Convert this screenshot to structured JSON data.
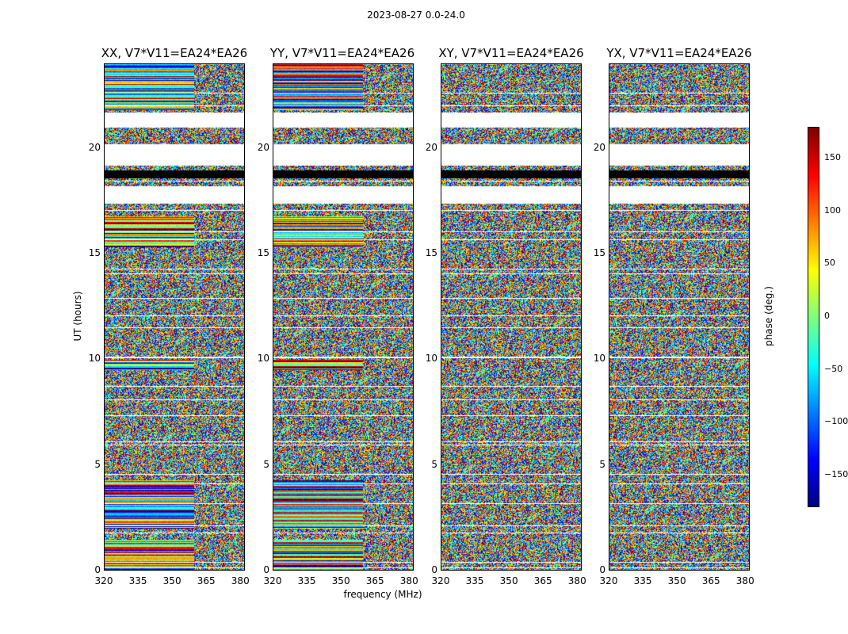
{
  "figure": {
    "suptitle": "2023-08-27 0.0-24.0",
    "ylabel": "UT (hours)",
    "xlabel": "frequency (MHz)",
    "colorbar_label": "phase (deg.)"
  },
  "chart_data": [
    {
      "type": "heatmap",
      "title": "XX, V7*V11=EA24*EA26",
      "xlim": [
        320,
        382
      ],
      "ylim": [
        0,
        24
      ],
      "xticks": [
        320,
        335,
        350,
        365,
        380
      ],
      "yticks": [
        0,
        5,
        10,
        15,
        20
      ],
      "xlabel": "",
      "ylabel": "UT (hours)"
    },
    {
      "type": "heatmap",
      "title": "YY, V7*V11=EA24*EA26",
      "xlim": [
        320,
        382
      ],
      "ylim": [
        0,
        24
      ],
      "xticks": [
        320,
        335,
        350,
        365,
        380
      ],
      "yticks": [
        0,
        5,
        10,
        15,
        20
      ],
      "xlabel": "frequency (MHz)",
      "ylabel": ""
    },
    {
      "type": "heatmap",
      "title": "XY, V7*V11=EA24*EA26",
      "xlim": [
        320,
        382
      ],
      "ylim": [
        0,
        24
      ],
      "xticks": [
        320,
        335,
        350,
        365,
        380
      ],
      "yticks": [
        0,
        5,
        10,
        15,
        20
      ],
      "xlabel": "",
      "ylabel": ""
    },
    {
      "type": "heatmap",
      "title": "YX, V7*V11=EA24*EA26",
      "xlim": [
        320,
        382
      ],
      "ylim": [
        0,
        24
      ],
      "xticks": [
        320,
        335,
        350,
        365,
        380
      ],
      "yticks": [
        0,
        5,
        10,
        15,
        20
      ],
      "xlabel": "",
      "ylabel": ""
    }
  ],
  "colorbar": {
    "range": [
      -180,
      180
    ],
    "ticks": [
      -150,
      -100,
      -50,
      0,
      50,
      100,
      150
    ],
    "tick_labels": [
      "−150",
      "−100",
      "−50",
      "0",
      "50",
      "100",
      "150"
    ],
    "colormap": "jet"
  },
  "flagged_gaps_hours": [
    [
      18.6,
      18.95
    ],
    [
      17.4,
      18.2
    ],
    [
      19.2,
      20.2
    ],
    [
      21.0,
      21.7
    ]
  ]
}
